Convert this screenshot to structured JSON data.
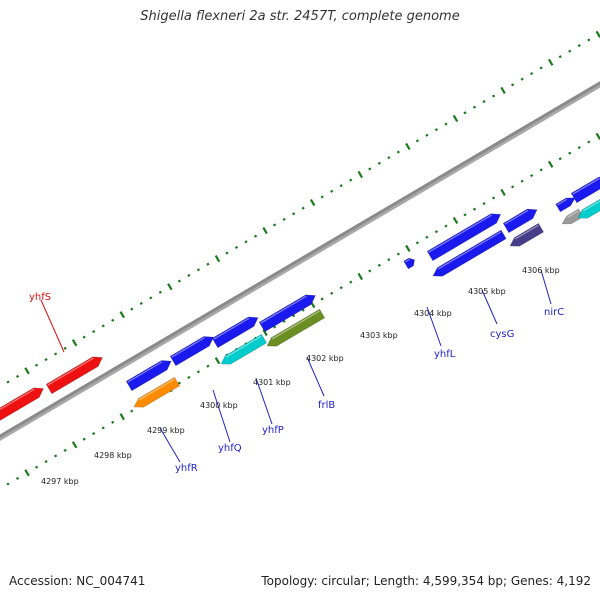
{
  "title": "Shigella flexneri 2a str. 2457T, complete genome",
  "footer": {
    "accession": "Accession: NC_004741",
    "summary": "Topology: circular; Length: 4,599,354 bp; Genes: 4,192"
  },
  "colors": {
    "backbone": "#8a8a8a",
    "tick": "#1e7a1e",
    "forward_gene": "#ee1111",
    "reverse_gene": "#1a1aee",
    "label_forward": "#dd1111",
    "label_reverse": "#2222cc"
  },
  "kbp_labels": [
    "4297 kbp",
    "4298 kbp",
    "4299 kbp",
    "4300 kbp",
    "4301 kbp",
    "4302 kbp",
    "4303 kbp",
    "4304 kbp",
    "4305 kbp",
    "4306 kbp"
  ],
  "gene_labels": [
    {
      "name": "yhfS",
      "strand": "forward"
    },
    {
      "name": "yhfR",
      "strand": "reverse"
    },
    {
      "name": "yhfQ",
      "strand": "reverse"
    },
    {
      "name": "yhfP",
      "strand": "reverse"
    },
    {
      "name": "frlB",
      "strand": "reverse"
    },
    {
      "name": "yhfL",
      "strand": "reverse"
    },
    {
      "name": "cysG",
      "strand": "reverse"
    },
    {
      "name": "nirC",
      "strand": "reverse"
    }
  ],
  "features": [
    {
      "name": "forward-gene",
      "color": "#ee1111"
    },
    {
      "name": "forward-gene",
      "color": "#ee1111"
    },
    {
      "name": "forward-gene",
      "color": "#1a1aee"
    },
    {
      "name": "forward-gene",
      "color": "#1a1aee"
    },
    {
      "name": "forward-gene",
      "color": "#1a1aee"
    },
    {
      "name": "forward-gene",
      "color": "#1a1aee"
    },
    {
      "name": "forward-gene",
      "color": "#1a1aee"
    },
    {
      "name": "forward-gene",
      "color": "#1a1aee"
    },
    {
      "name": "forward-gene",
      "color": "#1a1aee"
    },
    {
      "name": "forward-gene",
      "color": "#1a1aee"
    },
    {
      "name": "forward-gene",
      "color": "#1a1aee"
    },
    {
      "name": "reverse-gene-yhfR",
      "color": "#ff8c00"
    },
    {
      "name": "reverse-gene-yhfP",
      "color": "#00cccc"
    },
    {
      "name": "reverse-gene-frlB",
      "color": "#6b8e23"
    },
    {
      "name": "reverse-gene-cysG",
      "color": "#1a1aee"
    },
    {
      "name": "reverse-gene-nirC",
      "color": "#483d8b"
    },
    {
      "name": "reverse-gene",
      "color": "#9a9a9a"
    },
    {
      "name": "reverse-gene",
      "color": "#00cccc"
    }
  ]
}
